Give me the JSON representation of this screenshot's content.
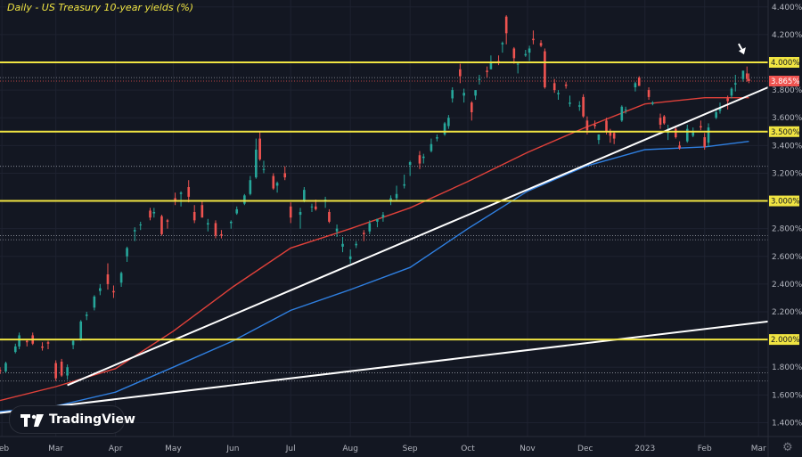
{
  "title": "Daily - US Treasury 10-year yields (%)",
  "logo_text": "TradingView",
  "colors": {
    "background": "#131722",
    "grid": "#1e2230",
    "bull": "#26a69a",
    "bear": "#ef5350",
    "level_line": "#f0e442",
    "ma_red": "#e0413a",
    "ma_blue": "#2f7fe0",
    "trend": "#ffffff",
    "price_label_bg": "#ef5350"
  },
  "icons": {
    "settings": "gear-icon",
    "logo": "tradingview-logo-icon"
  },
  "chart_data": {
    "type": "candlestick",
    "title": "Daily - US Treasury 10-year yields (%)",
    "ylim": [
      1.3,
      4.45
    ],
    "y_ticks": [
      1.4,
      1.6,
      1.8,
      2.0,
      2.2,
      2.4,
      2.6,
      2.8,
      3.0,
      3.2,
      3.4,
      3.6,
      3.8,
      4.0,
      4.2,
      4.4
    ],
    "y_tick_labels": [
      "1.400%",
      "1.600%",
      "1.800%",
      "2.000%",
      "2.200%",
      "2.400%",
      "2.600%",
      "2.800%",
      "3.000%",
      "3.200%",
      "3.400%",
      "3.600%",
      "3.800%",
      "4.000%",
      "4.200%",
      "4.400%"
    ],
    "x_range": [
      "2022-01-31",
      "2023-03-06"
    ],
    "x_ticks": [
      {
        "date": "2022-02-01",
        "label": "Feb"
      },
      {
        "date": "2022-03-01",
        "label": "Mar"
      },
      {
        "date": "2022-04-01",
        "label": "Apr"
      },
      {
        "date": "2022-05-01",
        "label": "May"
      },
      {
        "date": "2022-06-01",
        "label": "Jun"
      },
      {
        "date": "2022-07-01",
        "label": "Jul"
      },
      {
        "date": "2022-08-01",
        "label": "Aug"
      },
      {
        "date": "2022-09-01",
        "label": "Sep"
      },
      {
        "date": "2022-10-01",
        "label": "Oct"
      },
      {
        "date": "2022-11-01",
        "label": "Nov"
      },
      {
        "date": "2022-12-01",
        "label": "Dec"
      },
      {
        "date": "2023-01-01",
        "label": "2023"
      },
      {
        "date": "2023-02-01",
        "label": "Feb"
      },
      {
        "date": "2023-03-01",
        "label": "Mar"
      }
    ],
    "last_price": 3.865,
    "last_price_label": "3.865%",
    "horizontal_levels": [
      {
        "value": 4.0,
        "label": "4.000%"
      },
      {
        "value": 3.5,
        "label": "3.500%"
      },
      {
        "value": 3.0,
        "label": "3.000%"
      },
      {
        "value": 2.0,
        "label": "2.000%"
      }
    ],
    "dotted_levels": [
      3.89,
      3.25,
      2.75,
      2.72,
      1.76,
      1.7
    ],
    "trendlines": [
      {
        "from": [
          "2022-03-07",
          1.67
        ],
        "to": [
          "2023-03-06",
          3.82
        ]
      },
      {
        "from": [
          "2022-01-31",
          1.47
        ],
        "to": [
          "2023-03-06",
          2.13
        ]
      }
    ],
    "moving_averages": [
      {
        "color_key": "ma_red",
        "points": [
          [
            "2022-01-31",
            1.56
          ],
          [
            "2022-03-01",
            1.66
          ],
          [
            "2022-04-01",
            1.79
          ],
          [
            "2022-05-01",
            2.06
          ],
          [
            "2022-06-01",
            2.38
          ],
          [
            "2022-07-01",
            2.66
          ],
          [
            "2022-08-01",
            2.8
          ],
          [
            "2022-09-01",
            2.95
          ],
          [
            "2022-10-01",
            3.14
          ],
          [
            "2022-11-01",
            3.35
          ],
          [
            "2022-12-01",
            3.53
          ],
          [
            "2023-01-01",
            3.7
          ],
          [
            "2023-02-01",
            3.745
          ],
          [
            "2023-02-24",
            3.745
          ]
        ]
      },
      {
        "color_key": "ma_blue",
        "points": [
          [
            "2022-01-31",
            1.48
          ],
          [
            "2022-03-01",
            1.52
          ],
          [
            "2022-04-01",
            1.62
          ],
          [
            "2022-05-01",
            1.8
          ],
          [
            "2022-06-01",
            1.99
          ],
          [
            "2022-07-01",
            2.21
          ],
          [
            "2022-08-01",
            2.36
          ],
          [
            "2022-09-01",
            2.52
          ],
          [
            "2022-10-01",
            2.8
          ],
          [
            "2022-11-01",
            3.07
          ],
          [
            "2022-12-01",
            3.25
          ],
          [
            "2023-01-01",
            3.37
          ],
          [
            "2023-02-01",
            3.39
          ],
          [
            "2023-02-24",
            3.43
          ]
        ]
      }
    ],
    "candles": [
      [
        "2022-01-31",
        1.78,
        1.8,
        1.75,
        1.77
      ],
      [
        "2022-02-03",
        1.77,
        1.84,
        1.76,
        1.83
      ],
      [
        "2022-02-08",
        1.91,
        1.97,
        1.9,
        1.95
      ],
      [
        "2022-02-10",
        1.95,
        2.05,
        1.93,
        2.03
      ],
      [
        "2022-02-14",
        1.99,
        2.0,
        1.95,
        1.98
      ],
      [
        "2022-02-17",
        2.03,
        2.05,
        1.96,
        1.97
      ],
      [
        "2022-02-22",
        1.95,
        1.98,
        1.92,
        1.94
      ],
      [
        "2022-02-25",
        1.98,
        1.99,
        1.93,
        1.97
      ],
      [
        "2022-03-01",
        1.83,
        1.85,
        1.7,
        1.72
      ],
      [
        "2022-03-04",
        1.84,
        1.86,
        1.73,
        1.74
      ],
      [
        "2022-03-07",
        1.74,
        1.82,
        1.71,
        1.8
      ],
      [
        "2022-03-10",
        1.96,
        2.0,
        1.93,
        1.99
      ],
      [
        "2022-03-14",
        2.0,
        2.14,
        1.99,
        2.13
      ],
      [
        "2022-03-17",
        2.17,
        2.2,
        2.14,
        2.18
      ],
      [
        "2022-03-21",
        2.23,
        2.32,
        2.21,
        2.31
      ],
      [
        "2022-03-24",
        2.35,
        2.4,
        2.32,
        2.37
      ],
      [
        "2022-03-28",
        2.47,
        2.55,
        2.36,
        2.4
      ],
      [
        "2022-03-31",
        2.35,
        2.39,
        2.3,
        2.34
      ],
      [
        "2022-04-04",
        2.41,
        2.49,
        2.38,
        2.48
      ],
      [
        "2022-04-07",
        2.6,
        2.67,
        2.56,
        2.66
      ],
      [
        "2022-04-11",
        2.78,
        2.81,
        2.71,
        2.79
      ],
      [
        "2022-04-14",
        2.83,
        2.85,
        2.79,
        2.83
      ],
      [
        "2022-04-19",
        2.93,
        2.95,
        2.86,
        2.88
      ],
      [
        "2022-04-21",
        2.91,
        2.95,
        2.88,
        2.92
      ],
      [
        "2022-04-25",
        2.89,
        2.9,
        2.75,
        2.76
      ],
      [
        "2022-04-28",
        2.86,
        2.87,
        2.8,
        2.85
      ],
      [
        "2022-05-02",
        3.02,
        3.06,
        2.97,
        3.0
      ],
      [
        "2022-05-05",
        3.05,
        3.07,
        2.96,
        3.06
      ],
      [
        "2022-05-09",
        3.1,
        3.15,
        2.99,
        3.03
      ],
      [
        "2022-05-12",
        2.92,
        2.97,
        2.84,
        2.86
      ],
      [
        "2022-05-16",
        2.97,
        3.0,
        2.88,
        2.88
      ],
      [
        "2022-05-19",
        2.83,
        2.87,
        2.78,
        2.84
      ],
      [
        "2022-05-23",
        2.84,
        2.86,
        2.73,
        2.75
      ],
      [
        "2022-05-26",
        2.76,
        2.79,
        2.73,
        2.75
      ],
      [
        "2022-05-31",
        2.84,
        2.86,
        2.8,
        2.85
      ],
      [
        "2022-06-03",
        2.91,
        2.96,
        2.9,
        2.94
      ],
      [
        "2022-06-07",
        2.98,
        3.05,
        2.97,
        3.04
      ],
      [
        "2022-06-10",
        3.05,
        3.18,
        3.04,
        3.15
      ],
      [
        "2022-06-13",
        3.17,
        3.45,
        3.16,
        3.37
      ],
      [
        "2022-06-15",
        3.45,
        3.5,
        3.29,
        3.3
      ],
      [
        "2022-06-17",
        3.23,
        3.29,
        3.2,
        3.23
      ],
      [
        "2022-06-22",
        3.18,
        3.2,
        3.08,
        3.09
      ],
      [
        "2022-06-24",
        3.11,
        3.14,
        3.06,
        3.13
      ],
      [
        "2022-06-28",
        3.2,
        3.25,
        3.15,
        3.17
      ],
      [
        "2022-07-01",
        2.96,
        2.99,
        2.84,
        2.88
      ],
      [
        "2022-07-06",
        2.9,
        2.95,
        2.8,
        2.92
      ],
      [
        "2022-07-08",
        3.0,
        3.1,
        2.99,
        3.08
      ],
      [
        "2022-07-12",
        2.96,
        2.98,
        2.92,
        2.96
      ],
      [
        "2022-07-14",
        2.96,
        3.01,
        2.93,
        2.94
      ],
      [
        "2022-07-19",
        3.0,
        3.03,
        2.95,
        3.01
      ],
      [
        "2022-07-21",
        2.92,
        2.94,
        2.84,
        2.85
      ],
      [
        "2022-07-25",
        2.78,
        2.83,
        2.74,
        2.8
      ],
      [
        "2022-07-28",
        2.67,
        2.74,
        2.63,
        2.69
      ],
      [
        "2022-08-01",
        2.58,
        2.65,
        2.55,
        2.6
      ],
      [
        "2022-08-04",
        2.68,
        2.71,
        2.66,
        2.69
      ],
      [
        "2022-08-08",
        2.77,
        2.79,
        2.71,
        2.76
      ],
      [
        "2022-08-11",
        2.78,
        2.86,
        2.76,
        2.84
      ],
      [
        "2022-08-15",
        2.85,
        2.87,
        2.81,
        2.87
      ],
      [
        "2022-08-18",
        2.88,
        2.92,
        2.85,
        2.9
      ],
      [
        "2022-08-22",
        3.0,
        3.04,
        2.97,
        3.02
      ],
      [
        "2022-08-25",
        3.02,
        3.11,
        3.0,
        3.05
      ],
      [
        "2022-08-29",
        3.11,
        3.19,
        3.09,
        3.12
      ],
      [
        "2022-09-01",
        3.26,
        3.29,
        3.18,
        3.28
      ],
      [
        "2022-09-06",
        3.33,
        3.36,
        3.23,
        3.27
      ],
      [
        "2022-09-08",
        3.31,
        3.34,
        3.27,
        3.32
      ],
      [
        "2022-09-12",
        3.36,
        3.45,
        3.35,
        3.41
      ],
      [
        "2022-09-15",
        3.45,
        3.48,
        3.43,
        3.46
      ],
      [
        "2022-09-19",
        3.48,
        3.57,
        3.47,
        3.56
      ],
      [
        "2022-09-21",
        3.54,
        3.62,
        3.52,
        3.6
      ],
      [
        "2022-09-23",
        3.74,
        3.82,
        3.71,
        3.8
      ],
      [
        "2022-09-27",
        3.95,
        3.99,
        3.85,
        3.9
      ],
      [
        "2022-09-29",
        3.76,
        3.81,
        3.71,
        3.78
      ],
      [
        "2022-10-03",
        3.71,
        3.72,
        3.58,
        3.64
      ],
      [
        "2022-10-05",
        3.76,
        3.8,
        3.73,
        3.8
      ],
      [
        "2022-10-07",
        3.88,
        3.91,
        3.84,
        3.88
      ],
      [
        "2022-10-11",
        3.94,
        3.97,
        3.89,
        3.93
      ],
      [
        "2022-10-13",
        3.95,
        4.05,
        3.95,
        4.0
      ],
      [
        "2022-10-17",
        4.01,
        4.05,
        3.98,
        4.0
      ],
      [
        "2022-10-19",
        4.13,
        4.15,
        4.07,
        4.14
      ],
      [
        "2022-10-21",
        4.33,
        4.34,
        4.13,
        4.21
      ],
      [
        "2022-10-25",
        4.1,
        4.11,
        3.99,
        4.03
      ],
      [
        "2022-10-27",
        3.99,
        4.0,
        3.92,
        3.99
      ],
      [
        "2022-10-31",
        4.05,
        4.09,
        4.04,
        4.06
      ],
      [
        "2022-11-02",
        4.07,
        4.12,
        4.01,
        4.1
      ],
      [
        "2022-11-04",
        4.17,
        4.23,
        4.13,
        4.16
      ],
      [
        "2022-11-08",
        4.14,
        4.16,
        4.11,
        4.12
      ],
      [
        "2022-11-10",
        4.08,
        4.1,
        3.81,
        3.82
      ],
      [
        "2022-11-15",
        3.85,
        3.88,
        3.78,
        3.8
      ],
      [
        "2022-11-17",
        3.77,
        3.8,
        3.73,
        3.78
      ],
      [
        "2022-11-21",
        3.84,
        3.86,
        3.81,
        3.83
      ],
      [
        "2022-11-23",
        3.7,
        3.76,
        3.68,
        3.71
      ],
      [
        "2022-11-28",
        3.68,
        3.72,
        3.65,
        3.69
      ],
      [
        "2022-11-30",
        3.75,
        3.77,
        3.6,
        3.61
      ],
      [
        "2022-12-02",
        3.58,
        3.61,
        3.48,
        3.51
      ],
      [
        "2022-12-06",
        3.55,
        3.58,
        3.52,
        3.54
      ],
      [
        "2022-12-08",
        3.44,
        3.48,
        3.41,
        3.48
      ],
      [
        "2022-12-12",
        3.58,
        3.6,
        3.48,
        3.5
      ],
      [
        "2022-12-14",
        3.5,
        3.52,
        3.42,
        3.47
      ],
      [
        "2022-12-16",
        3.49,
        3.5,
        3.41,
        3.45
      ],
      [
        "2022-12-20",
        3.58,
        3.69,
        3.57,
        3.68
      ],
      [
        "2022-12-22",
        3.66,
        3.68,
        3.63,
        3.66
      ],
      [
        "2022-12-27",
        3.82,
        3.86,
        3.79,
        3.85
      ],
      [
        "2022-12-29",
        3.89,
        3.9,
        3.83,
        3.83
      ],
      [
        "2023-01-03",
        3.8,
        3.82,
        3.73,
        3.75
      ],
      [
        "2023-01-05",
        3.7,
        3.72,
        3.69,
        3.71
      ],
      [
        "2023-01-09",
        3.6,
        3.63,
        3.52,
        3.55
      ],
      [
        "2023-01-11",
        3.61,
        3.62,
        3.55,
        3.56
      ],
      [
        "2023-01-13",
        3.49,
        3.55,
        3.44,
        3.5
      ],
      [
        "2023-01-17",
        3.52,
        3.53,
        3.45,
        3.46
      ],
      [
        "2023-01-19",
        3.4,
        3.43,
        3.37,
        3.38
      ],
      [
        "2023-01-23",
        3.43,
        3.55,
        3.42,
        3.52
      ],
      [
        "2023-01-26",
        3.47,
        3.53,
        3.46,
        3.5
      ],
      [
        "2023-01-30",
        3.54,
        3.58,
        3.51,
        3.53
      ],
      [
        "2023-02-01",
        3.46,
        3.49,
        3.37,
        3.39
      ],
      [
        "2023-02-03",
        3.42,
        3.56,
        3.39,
        3.53
      ],
      [
        "2023-02-07",
        3.6,
        3.67,
        3.59,
        3.64
      ],
      [
        "2023-02-09",
        3.65,
        3.71,
        3.63,
        3.67
      ],
      [
        "2023-02-13",
        3.74,
        3.76,
        3.66,
        3.72
      ],
      [
        "2023-02-15",
        3.76,
        3.82,
        3.74,
        3.81
      ],
      [
        "2023-02-17",
        3.84,
        3.91,
        3.79,
        3.85
      ],
      [
        "2023-02-21",
        3.88,
        3.94,
        3.86,
        3.94
      ],
      [
        "2023-02-23",
        3.92,
        3.97,
        3.86,
        3.88
      ],
      [
        "2023-02-24",
        3.88,
        3.92,
        3.85,
        3.865
      ]
    ],
    "annotation": "white arrow pointing down at the latest candles near the 4.000% level"
  }
}
